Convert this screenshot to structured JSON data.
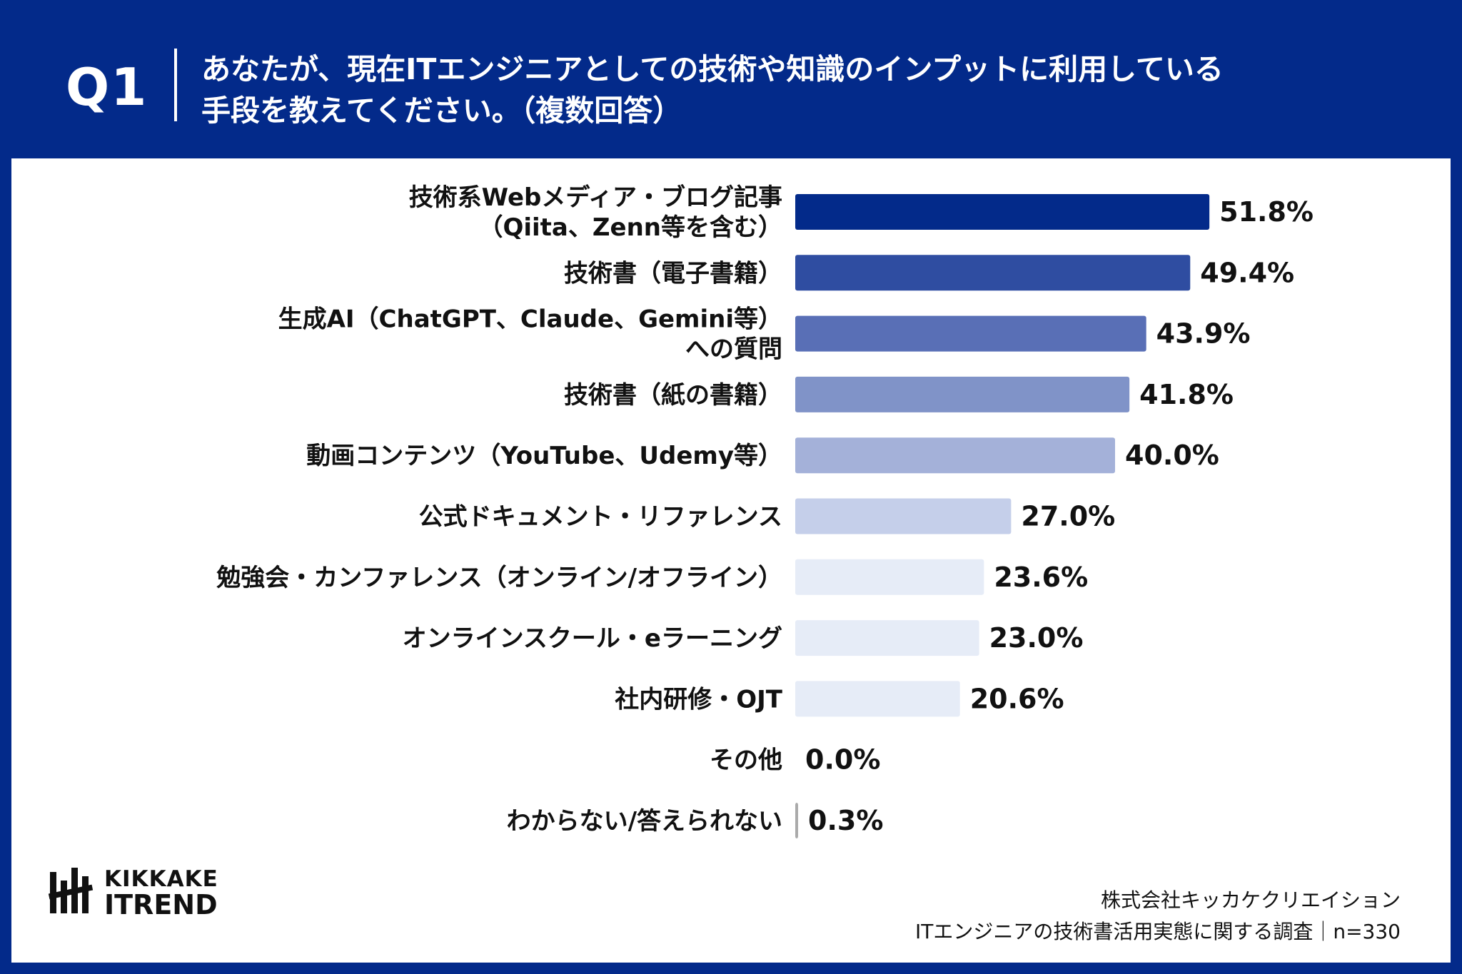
{
  "header": {
    "question_label": "Q1",
    "question_line1": "あなたが、現在ITエンジニアとしての技術や知識のインプットに利用している",
    "question_line2": "手段を教えてください。（複数回答）"
  },
  "chart_data": {
    "type": "bar",
    "orientation": "horizontal",
    "categories": [
      [
        "技術系Webメディア・ブログ記事",
        "（Qiita、Zenn等を含む）"
      ],
      [
        "技術書（電子書籍）"
      ],
      [
        "生成AI（ChatGPT、Claude、Gemini等）",
        "への質問"
      ],
      [
        "技術書（紙の書籍）"
      ],
      [
        "動画コンテンツ（YouTube、Udemy等）"
      ],
      [
        "公式ドキュメント・リファレンス"
      ],
      [
        "勉強会・カンファレンス（オンライン/オフライン）"
      ],
      [
        "オンラインスクール・eラーニング"
      ],
      [
        "社内研修・OJT"
      ],
      [
        "その他"
      ],
      [
        "わからない/答えられない"
      ]
    ],
    "values": [
      51.8,
      49.4,
      43.9,
      41.8,
      40.0,
      27.0,
      23.6,
      23.0,
      20.6,
      0.0,
      0.3
    ],
    "value_labels": [
      "51.8%",
      "49.4%",
      "43.9%",
      "41.8%",
      "40.0%",
      "27.0%",
      "23.6%",
      "23.0%",
      "20.6%",
      "0.0%",
      "0.3%"
    ],
    "bar_colors": [
      "#032A8A",
      "#2F4DA1",
      "#596FB6",
      "#8093C8",
      "#A4B1D9",
      "#C5CFEA",
      "#E6ECF7",
      "#E6ECF7",
      "#E6ECF7",
      "#E6ECF7",
      "#AAAAAA"
    ],
    "xlim": [
      0,
      60
    ],
    "grid": false,
    "legend": "none"
  },
  "footer": {
    "logo_line1": "KIKKAKE",
    "logo_line2": "ITREND",
    "company": "株式会社キッカケクリエイション",
    "survey": "ITエンジニアの技術書活用実態に関する調査｜n=330"
  }
}
